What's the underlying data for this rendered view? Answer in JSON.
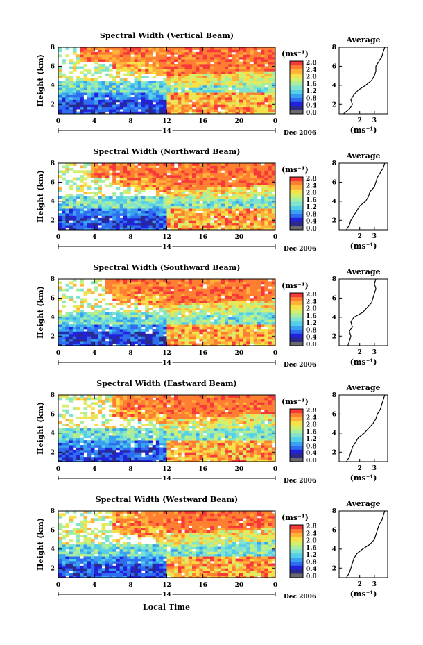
{
  "colors": {
    "scale": [
      "#6a6a6a",
      "#2a2a8a",
      "#2222dd",
      "#2f6df0",
      "#3aa0f0",
      "#55cfe8",
      "#7fe3cf",
      "#a8ee9e",
      "#d4ef6d",
      "#f7e14a",
      "#ffb13a",
      "#ff7f32",
      "#f7393a"
    ],
    "axis": "#000000"
  },
  "common": {
    "height_label": "Height (km)",
    "unit_label": "(ms⁻¹)",
    "date_label": "Dec 2006",
    "local_time_label": "Local Time",
    "day_label": "14",
    "average_title": "Average",
    "colorbar_ticks": [
      "2.8",
      "2.4",
      "2.0",
      "1.6",
      "1.2",
      "0.8",
      "0.4",
      "0.0"
    ],
    "time_ticks": [
      "0",
      "4",
      "8",
      "12",
      "16",
      "20",
      "0"
    ],
    "height_ticks": [
      "2",
      "4",
      "6",
      "8"
    ]
  },
  "chart_data": [
    {
      "type": "heatmap",
      "title": "Spectral Width (Vertical Beam)",
      "xlabel": "",
      "ylabel": "Height (km)",
      "xlim": [
        0,
        24
      ],
      "ylim": [
        1,
        8
      ],
      "colorbar": {
        "label": "(ms⁻¹)",
        "range": [
          0.0,
          2.8
        ]
      },
      "average": {
        "title": "Average",
        "xlabel": "(ms⁻¹)",
        "xticks": [
          "2",
          "3"
        ],
        "profile": [
          [
            0.9,
            1.0
          ],
          [
            1.3,
            1.5
          ],
          [
            1.5,
            2.0
          ],
          [
            1.4,
            2.5
          ],
          [
            1.6,
            3.0
          ],
          [
            1.9,
            3.5
          ],
          [
            2.4,
            4.0
          ],
          [
            2.8,
            4.5
          ],
          [
            3.0,
            5.0
          ],
          [
            3.1,
            5.5
          ],
          [
            3.1,
            6.0
          ],
          [
            3.3,
            6.5
          ],
          [
            3.5,
            7.0
          ],
          [
            3.6,
            7.5
          ],
          [
            3.7,
            8.0
          ]
        ]
      }
    },
    {
      "type": "heatmap",
      "title": "Spectral Width (Northward Beam)",
      "xlabel": "",
      "ylabel": "Height (km)",
      "xlim": [
        0,
        24
      ],
      "ylim": [
        1,
        8
      ],
      "colorbar": {
        "label": "(ms⁻¹)",
        "range": [
          0.0,
          2.8
        ]
      },
      "average": {
        "title": "Average",
        "xlabel": "(ms⁻¹)",
        "xticks": [
          "2",
          "3"
        ],
        "profile": [
          [
            1.1,
            1.0
          ],
          [
            1.3,
            1.5
          ],
          [
            1.4,
            2.0
          ],
          [
            1.6,
            2.5
          ],
          [
            1.8,
            3.0
          ],
          [
            2.0,
            3.5
          ],
          [
            2.4,
            4.0
          ],
          [
            2.6,
            4.5
          ],
          [
            2.7,
            5.0
          ],
          [
            3.0,
            5.5
          ],
          [
            3.1,
            6.0
          ],
          [
            3.2,
            6.5
          ],
          [
            3.4,
            7.0
          ],
          [
            3.6,
            7.5
          ],
          [
            3.7,
            8.0
          ]
        ]
      }
    },
    {
      "type": "heatmap",
      "title": "Spectral Width (Southward Beam)",
      "xlabel": "",
      "ylabel": "Height (km)",
      "xlim": [
        0,
        24
      ],
      "ylim": [
        1,
        8
      ],
      "colorbar": {
        "label": "(ms⁻¹)",
        "range": [
          0.0,
          2.8
        ]
      },
      "average": {
        "title": "Average",
        "xlabel": "(ms⁻¹)",
        "xticks": [
          "2",
          "3"
        ],
        "profile": [
          [
            1.2,
            1.0
          ],
          [
            1.3,
            1.5
          ],
          [
            1.4,
            2.0
          ],
          [
            1.3,
            2.5
          ],
          [
            1.5,
            3.0
          ],
          [
            1.4,
            3.5
          ],
          [
            1.6,
            4.0
          ],
          [
            2.2,
            4.5
          ],
          [
            2.5,
            5.0
          ],
          [
            2.8,
            5.5
          ],
          [
            2.9,
            6.0
          ],
          [
            3.0,
            6.5
          ],
          [
            3.1,
            7.0
          ],
          [
            3.0,
            7.5
          ],
          [
            3.1,
            8.0
          ]
        ]
      }
    },
    {
      "type": "heatmap",
      "title": "Spectral Width (Eastward Beam)",
      "xlabel": "",
      "ylabel": "Height (km)",
      "xlim": [
        0,
        24
      ],
      "ylim": [
        1,
        8
      ],
      "colorbar": {
        "label": "(ms⁻¹)",
        "range": [
          0.0,
          2.8
        ]
      },
      "average": {
        "title": "Average",
        "xlabel": "(ms⁻¹)",
        "xticks": [
          "2",
          "3"
        ],
        "profile": [
          [
            1.1,
            1.0
          ],
          [
            1.3,
            1.5
          ],
          [
            1.4,
            2.0
          ],
          [
            1.5,
            2.5
          ],
          [
            1.7,
            3.0
          ],
          [
            1.9,
            3.5
          ],
          [
            2.3,
            4.0
          ],
          [
            2.6,
            4.5
          ],
          [
            2.9,
            5.0
          ],
          [
            3.1,
            5.5
          ],
          [
            3.2,
            6.0
          ],
          [
            3.4,
            6.5
          ],
          [
            3.5,
            7.0
          ],
          [
            3.6,
            7.5
          ],
          [
            3.7,
            8.0
          ]
        ]
      }
    },
    {
      "type": "heatmap",
      "title": "Spectral Width (Westward Beam)",
      "xlabel": "Local Time",
      "ylabel": "Height (km)",
      "xlim": [
        0,
        24
      ],
      "ylim": [
        1,
        8
      ],
      "colorbar": {
        "label": "(ms⁻¹)",
        "range": [
          0.0,
          2.8
        ]
      },
      "average": {
        "title": "Average",
        "xlabel": "(ms⁻¹)",
        "xticks": [
          "2",
          "3"
        ],
        "profile": [
          [
            1.1,
            1.0
          ],
          [
            1.3,
            1.5
          ],
          [
            1.4,
            2.0
          ],
          [
            1.5,
            2.5
          ],
          [
            1.6,
            3.0
          ],
          [
            1.8,
            3.5
          ],
          [
            2.2,
            4.0
          ],
          [
            2.7,
            4.5
          ],
          [
            3.0,
            5.0
          ],
          [
            3.1,
            5.5
          ],
          [
            3.2,
            6.0
          ],
          [
            3.3,
            6.5
          ],
          [
            3.5,
            7.0
          ],
          [
            3.6,
            7.5
          ],
          [
            3.7,
            8.0
          ]
        ]
      }
    }
  ]
}
